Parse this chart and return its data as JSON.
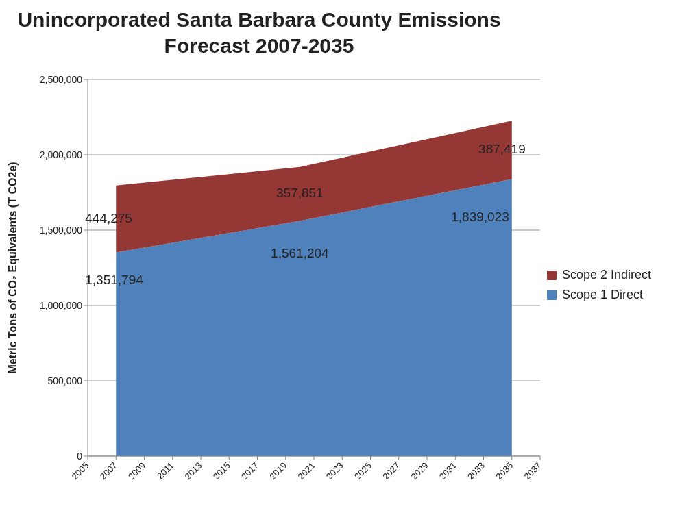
{
  "chart_data": {
    "type": "area",
    "title": "Unincorporated Santa Barbara County Emissions Forecast 2007-2035",
    "ylabel": "Metric Tons of CO₂ Equivalents (T CO2e)",
    "x": [
      2007,
      2020,
      2035
    ],
    "stacked": true,
    "series": [
      {
        "name": "Scope 1 Direct",
        "color": "#4f81bd",
        "values": [
          1351794,
          1561204,
          1839023
        ],
        "value_labels": [
          "1,351,794",
          "1,561,204",
          "1,839,023"
        ]
      },
      {
        "name": "Scope 2 Indirect",
        "color": "#953735",
        "values": [
          444275,
          357851,
          387419
        ],
        "value_labels": [
          "444,275",
          "357,851",
          "387,419"
        ]
      }
    ],
    "xlim": [
      2005,
      2037
    ],
    "xticks": [
      2005,
      2007,
      2009,
      2011,
      2013,
      2015,
      2017,
      2019,
      2021,
      2023,
      2025,
      2027,
      2029,
      2031,
      2033,
      2035,
      2037
    ],
    "ylim": [
      0,
      2500000
    ],
    "yticks": [
      {
        "value": 0,
        "label": "0"
      },
      {
        "value": 500000,
        "label": "500,000"
      },
      {
        "value": 1000000,
        "label": "1,000,000"
      },
      {
        "value": 1500000,
        "label": "1,500,000"
      },
      {
        "value": 2000000,
        "label": "2,000,000"
      },
      {
        "value": 2500000,
        "label": "2,500,000"
      }
    ],
    "grid": "y",
    "legend": "right"
  }
}
